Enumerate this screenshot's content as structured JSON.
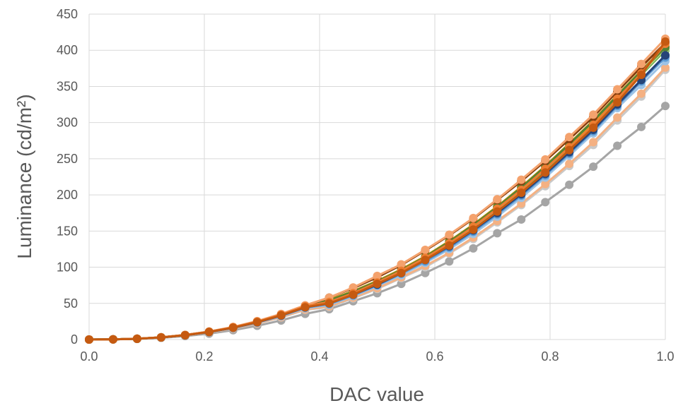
{
  "chart_data": {
    "type": "line",
    "title": "",
    "xlabel": "DAC value",
    "ylabel": "Luminance (cd/m²)",
    "xlim": [
      0,
      1
    ],
    "ylim": [
      0,
      450
    ],
    "grid": true,
    "legend": "none",
    "x_ticks": [
      "0.0",
      "0.2",
      "0.4",
      "0.6",
      "0.8",
      "1.0"
    ],
    "y_ticks": [
      "0",
      "50",
      "100",
      "150",
      "200",
      "250",
      "300",
      "350",
      "400",
      "450"
    ],
    "x": [
      0,
      0.0417,
      0.0833,
      0.125,
      0.1667,
      0.2083,
      0.25,
      0.2917,
      0.3333,
      0.375,
      0.4167,
      0.4583,
      0.5,
      0.5417,
      0.5833,
      0.625,
      0.6667,
      0.7083,
      0.75,
      0.7917,
      0.8333,
      0.875,
      0.9167,
      0.9583,
      1.0
    ],
    "series": [
      {
        "color": "#a5a5a5",
        "values": [
          0,
          0.2,
          0.9,
          2.3,
          4.7,
          8.2,
          12.9,
          19.0,
          26.4,
          35.5,
          42,
          53,
          64,
          77,
          92,
          108,
          126,
          147,
          166,
          190,
          214,
          239,
          268,
          294,
          323
        ]
      },
      {
        "color": "#c9c9c9",
        "values": [
          0,
          0.2,
          1.0,
          2.7,
          5.5,
          9.6,
          15.0,
          22.0,
          30.6,
          41.0,
          45,
          57,
          70,
          85,
          100,
          119,
          139,
          162,
          186,
          212,
          240,
          269,
          303,
          336,
          373
        ]
      },
      {
        "color": "#f4b183",
        "values": [
          0,
          0.2,
          1.0,
          2.7,
          5.6,
          9.7,
          15.2,
          22.3,
          31.0,
          41.5,
          46,
          58,
          71,
          86,
          102,
          120,
          141,
          164,
          188,
          215,
          243,
          273,
          307,
          340,
          376
        ]
      },
      {
        "color": "#9dc3e6",
        "values": [
          0,
          0.2,
          1.1,
          2.8,
          5.8,
          10.1,
          15.8,
          23.2,
          32.2,
          43.2,
          48,
          60,
          74,
          89,
          106,
          125,
          146,
          170,
          196,
          224,
          254,
          285,
          320,
          352,
          385
        ]
      },
      {
        "color": "#5b9bd5",
        "values": [
          0,
          0.2,
          1.1,
          2.9,
          5.9,
          10.3,
          16.1,
          23.6,
          32.8,
          44.0,
          49,
          61,
          75,
          91,
          108,
          127,
          149,
          173,
          199,
          227,
          257,
          288,
          323,
          357,
          390
        ]
      },
      {
        "color": "#4472c4",
        "values": [
          0,
          0.2,
          1.1,
          2.9,
          6.0,
          10.4,
          16.3,
          23.9,
          33.2,
          44.5,
          50,
          62,
          76,
          92,
          110,
          129,
          151,
          175,
          201,
          229,
          259,
          290,
          325,
          359,
          393
        ]
      },
      {
        "color": "#70ad47",
        "values": [
          0,
          0.2,
          1.1,
          2.9,
          6.0,
          10.5,
          16.5,
          24.1,
          33.5,
          44.9,
          51,
          63,
          77,
          93,
          111,
          131,
          153,
          178,
          204,
          233,
          263,
          295,
          330,
          366,
          400
        ]
      },
      {
        "color": "#a9d18e",
        "values": [
          0,
          0.2,
          1.1,
          3.0,
          6.1,
          10.6,
          16.6,
          24.3,
          33.8,
          45.3,
          52,
          64,
          78,
          94,
          112,
          133,
          155,
          180,
          207,
          236,
          266,
          298,
          333,
          368,
          402
        ]
      },
      {
        "color": "#ffc000",
        "values": [
          0,
          0.2,
          1.1,
          3.0,
          6.1,
          10.7,
          16.7,
          24.5,
          34.0,
          45.6,
          53,
          65,
          79,
          95,
          113,
          134,
          157,
          182,
          209,
          238,
          269,
          301,
          336,
          370,
          404
        ]
      },
      {
        "color": "#bf9000",
        "values": [
          0,
          0.2,
          1.1,
          3.0,
          6.2,
          10.8,
          16.9,
          24.7,
          34.3,
          46.0,
          55,
          67,
          81,
          97,
          115,
          136,
          159,
          184,
          211,
          240,
          271,
          303,
          338,
          372,
          405
        ]
      },
      {
        "color": "#548235",
        "values": [
          0,
          0.2,
          1.1,
          3.0,
          6.2,
          10.8,
          16.9,
          24.8,
          34.5,
          46.2,
          54,
          66,
          80,
          96,
          114,
          135,
          158,
          183,
          210,
          239,
          270,
          302,
          337,
          371,
          404
        ]
      },
      {
        "color": "#264478",
        "values": [
          0,
          0.2,
          1.1,
          2.9,
          6.0,
          10.4,
          16.3,
          23.9,
          33.2,
          44.5,
          50,
          62,
          76,
          92,
          110,
          129,
          151,
          175,
          201,
          229,
          259,
          290,
          325,
          359,
          393
        ]
      },
      {
        "color": "#843c0c",
        "values": [
          0,
          0.2,
          1.1,
          3.0,
          6.3,
          10.9,
          17.1,
          25.0,
          34.8,
          46.6,
          58,
          71,
          86,
          103,
          123,
          144,
          167,
          193,
          219,
          247,
          277,
          308,
          343,
          377,
          410
        ]
      },
      {
        "color": "#f4a26d",
        "values": [
          0,
          0.2,
          1.2,
          3.1,
          6.4,
          11.1,
          17.4,
          25.5,
          35.4,
          47.4,
          58,
          72,
          88,
          104,
          124,
          145,
          168,
          194,
          221,
          249,
          280,
          311,
          346,
          381,
          416
        ]
      },
      {
        "color": "#ed7d31",
        "values": [
          0,
          0.2,
          1.1,
          3.0,
          6.2,
          10.8,
          16.9,
          24.7,
          34.3,
          46.0,
          52,
          64,
          79,
          95,
          113,
          133,
          156,
          181,
          207,
          236,
          266,
          297,
          333,
          368,
          409
        ]
      },
      {
        "color": "#c55a11",
        "values": [
          0,
          0.2,
          1.1,
          2.9,
          6.0,
          10.5,
          16.4,
          24.0,
          33.4,
          44.7,
          50,
          62,
          77,
          92,
          110,
          130,
          152,
          177,
          203,
          231,
          262,
          293,
          328,
          366,
          412
        ]
      }
    ]
  }
}
